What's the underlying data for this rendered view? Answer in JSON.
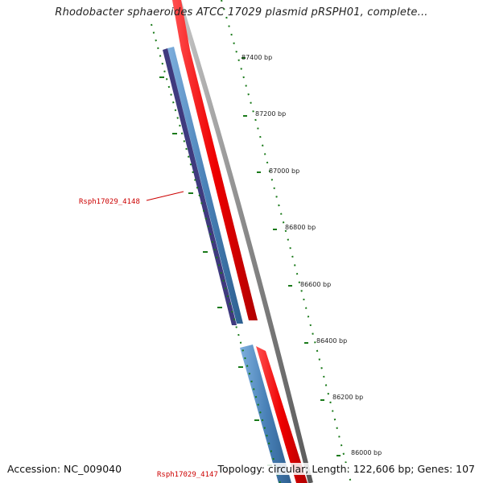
{
  "title": "Rhodobacter sphaeroides ATCC 17029 plasmid pRSPH01, complete...",
  "footer": {
    "accession": "Accession: NC_009040",
    "summary": "Topology: circular; Length: 122,606 bp; Genes: 107"
  },
  "ruler": {
    "labels": [
      "87400 bp",
      "87200 bp",
      "87000 bp",
      "86800 bp",
      "86600 bp",
      "86400 bp",
      "86200 bp",
      "86000 bp"
    ]
  },
  "genes": [
    {
      "name": "Rsph17029_4148",
      "strand": "-"
    },
    {
      "name": "Rsph17029_4147",
      "strand": "-"
    }
  ],
  "colors": {
    "backbone": "#8a8a8a",
    "cds_forward": "#ee0000",
    "cds_reverse": "#4a82b8",
    "gene_reverse": "#3f3a7e",
    "ticks": "#1a7a1a",
    "gene_label": "#cc0000"
  }
}
